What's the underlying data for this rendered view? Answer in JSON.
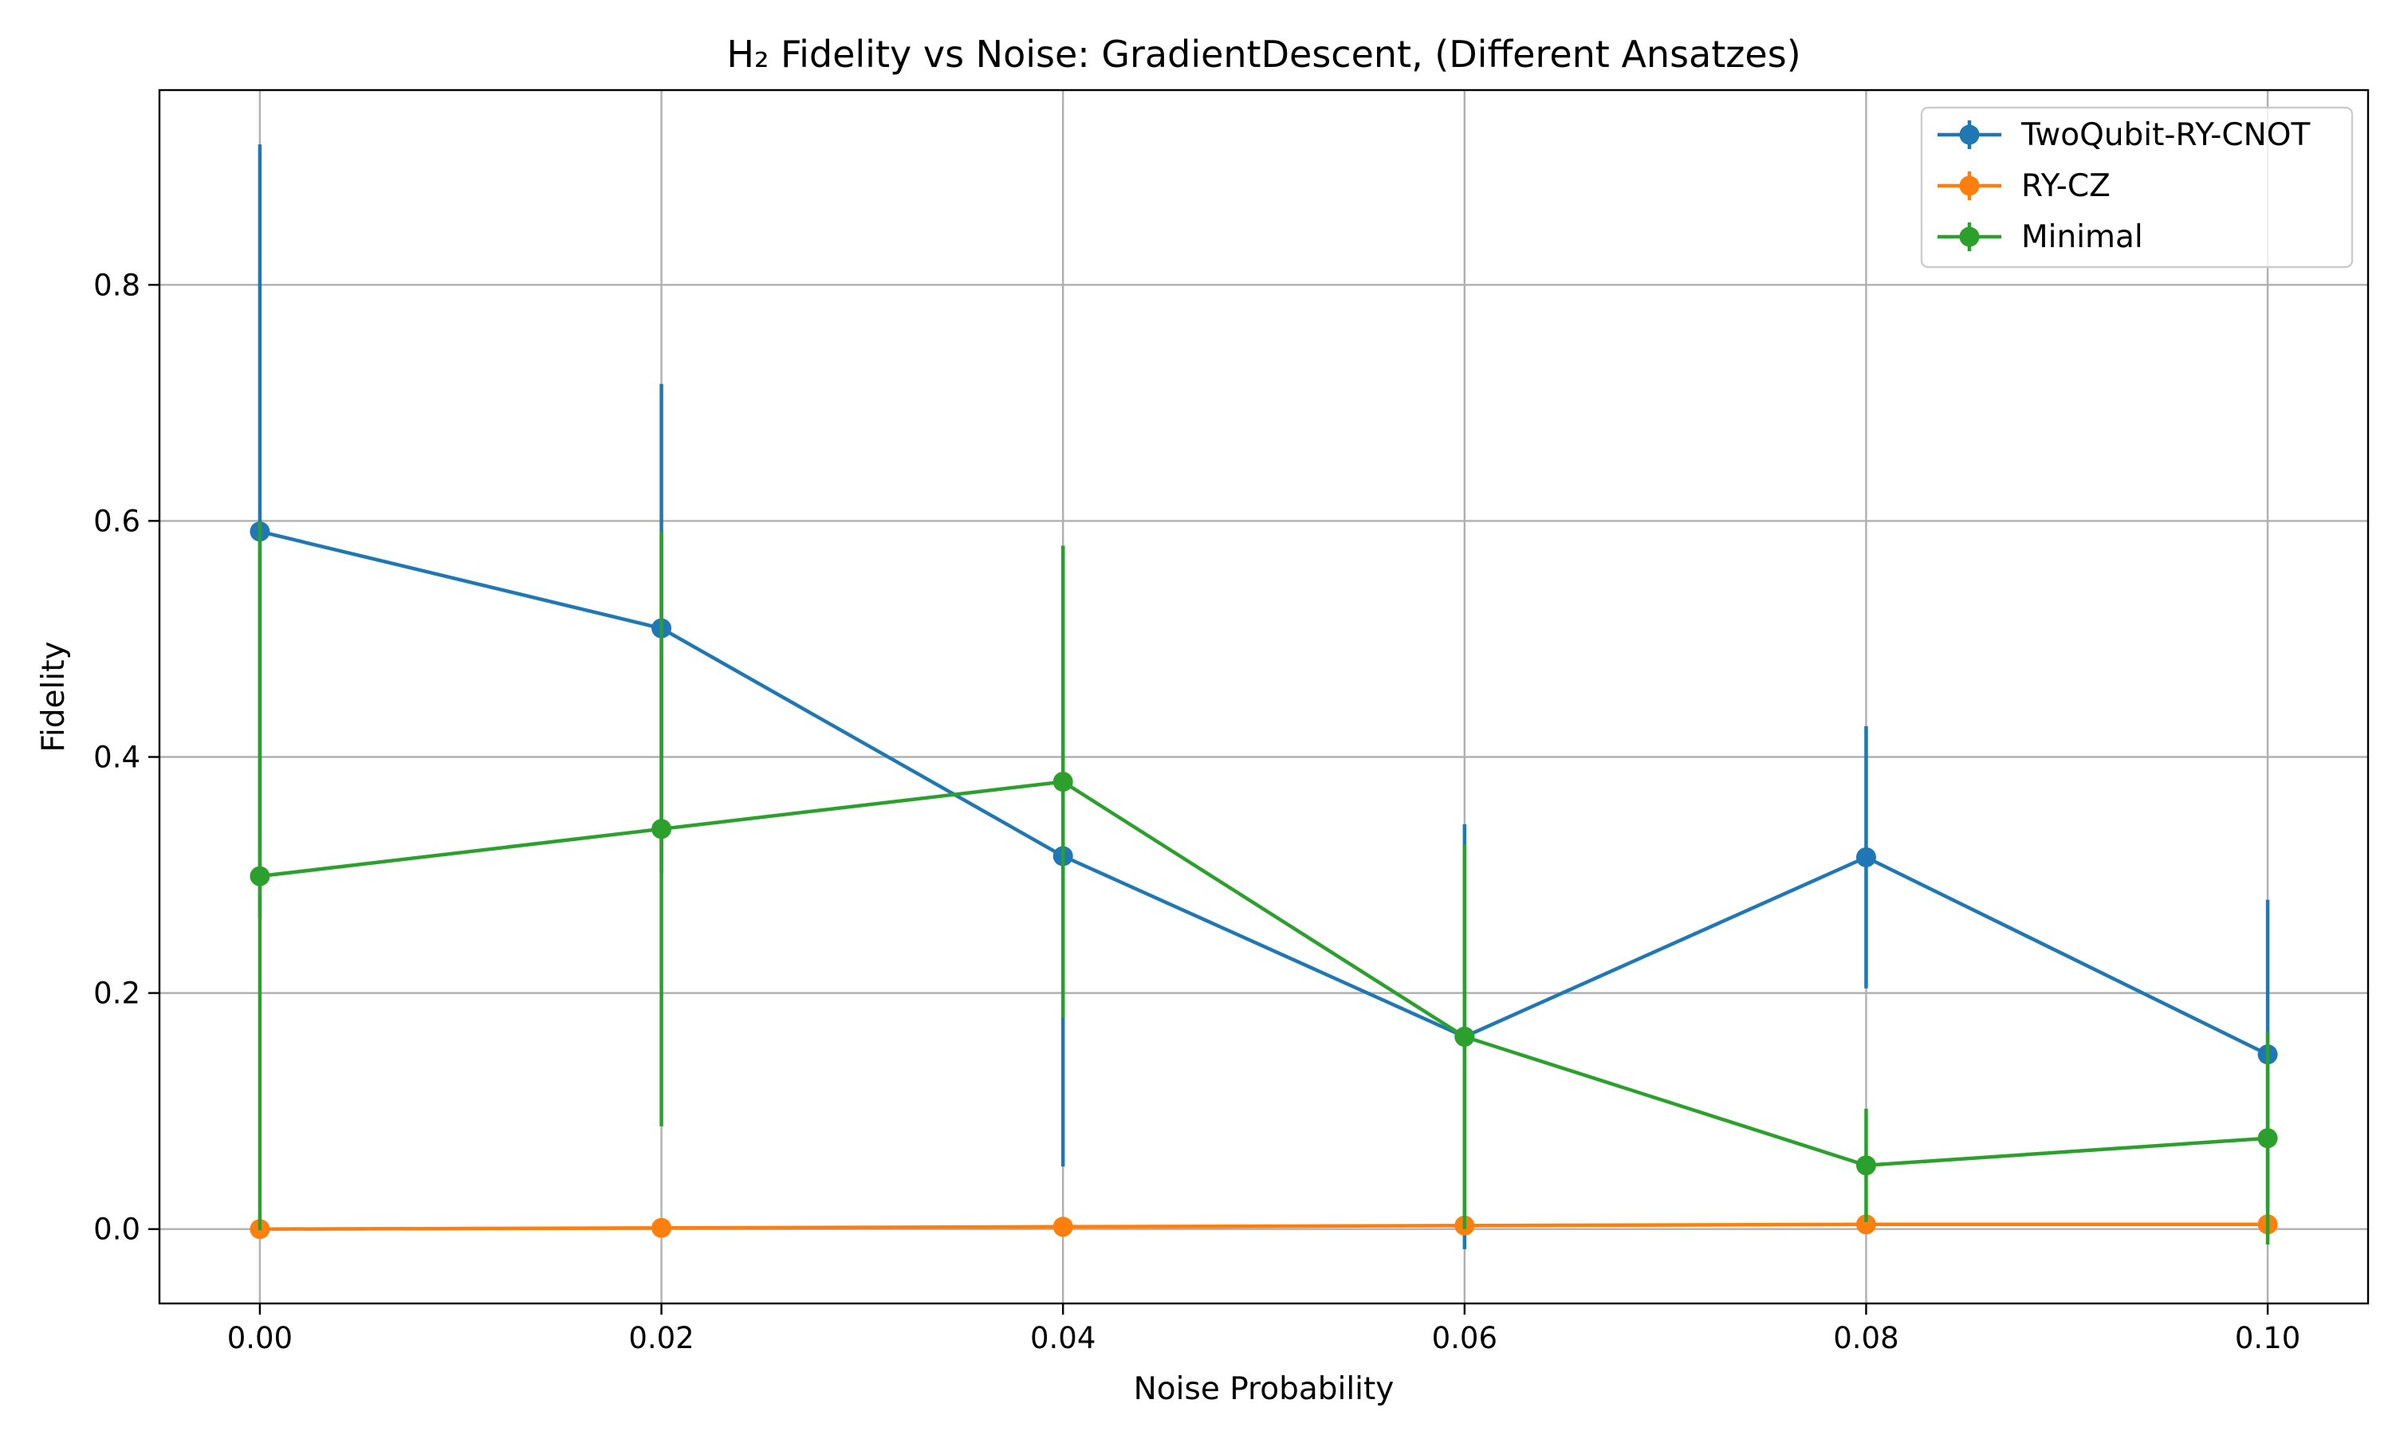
{
  "chart_data": {
    "type": "line",
    "title": "H₂ Fidelity vs Noise: GradientDescent, (Different Ansatzes)",
    "xlabel": "Noise Probability",
    "ylabel": "Fidelity",
    "x": [
      0.0,
      0.02,
      0.04,
      0.06,
      0.08,
      0.1
    ],
    "x_tick_labels": [
      "0.00",
      "0.02",
      "0.04",
      "0.06",
      "0.08",
      "0.10"
    ],
    "y_ticks": [
      0.0,
      0.2,
      0.4,
      0.6,
      0.8
    ],
    "y_tick_labels": [
      "0.0",
      "0.2",
      "0.4",
      "0.6",
      "0.8"
    ],
    "xlim": [
      -0.005,
      0.105
    ],
    "ylim": [
      -0.063,
      0.965
    ],
    "grid": true,
    "legend_position": "top-right",
    "series": [
      {
        "name": "TwoQubit-RY-CNOT",
        "color": "#1f77b4",
        "values": [
          0.591,
          0.509,
          0.316,
          0.163,
          0.315,
          0.148
        ],
        "error": [
          0.328,
          0.207,
          0.263,
          0.18,
          0.111,
          0.131
        ]
      },
      {
        "name": "RY-CZ",
        "color": "#ff7f0e",
        "values": [
          0.0,
          0.001,
          0.002,
          0.003,
          0.004,
          0.004
        ],
        "error": [
          0.0,
          0.0,
          0.0,
          0.0,
          0.0,
          0.0
        ]
      },
      {
        "name": "Minimal",
        "color": "#2ca02c",
        "values": [
          0.299,
          0.339,
          0.379,
          0.163,
          0.054,
          0.077
        ],
        "error": [
          0.3,
          0.252,
          0.2,
          0.163,
          0.048,
          0.09
        ]
      }
    ]
  }
}
